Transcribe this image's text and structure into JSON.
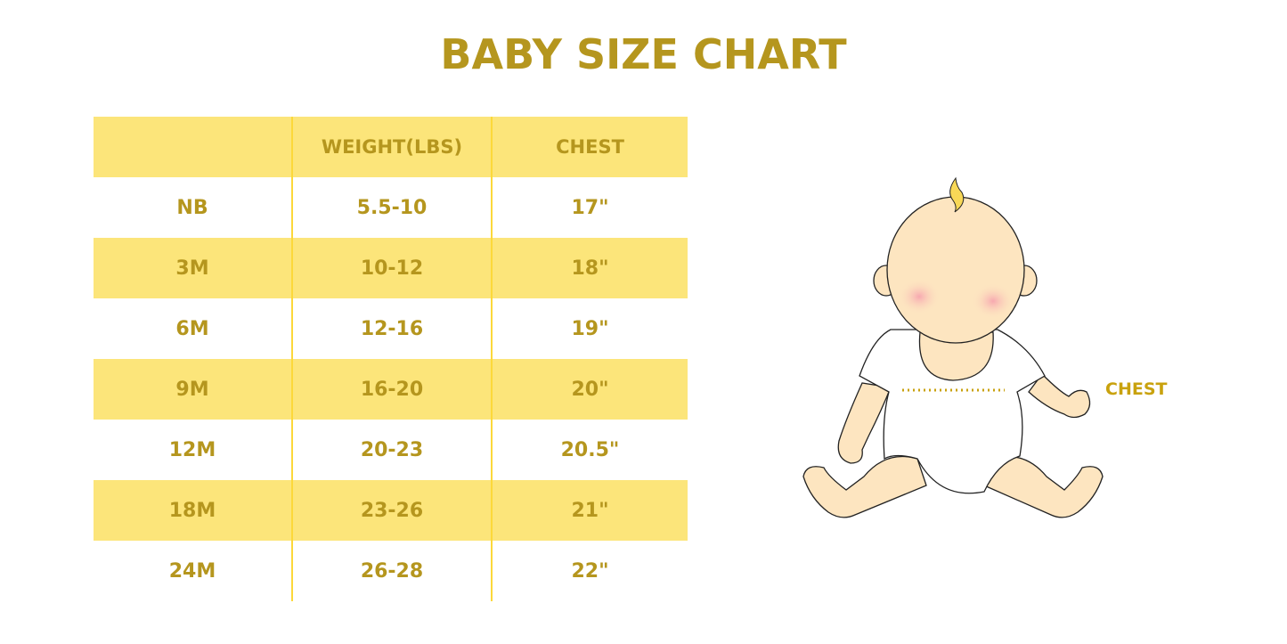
{
  "title": "BABY SIZE CHART",
  "table": {
    "headers": [
      "",
      "WEIGHT(LBS)",
      "CHEST"
    ],
    "rows": [
      [
        "NB",
        "5.5-10",
        "17\""
      ],
      [
        "3M",
        "10-12",
        "18\""
      ],
      [
        "6M",
        "12-16",
        "19\""
      ],
      [
        "9M",
        "16-20",
        "20\""
      ],
      [
        "12M",
        "20-23",
        "20.5\""
      ],
      [
        "18M",
        "23-26",
        "21\""
      ],
      [
        "24M",
        "26-28",
        "22\""
      ]
    ]
  },
  "illustration": {
    "chest_label": "CHEST",
    "icon": "baby-illustration"
  },
  "colors": {
    "text": "#b5961e",
    "stripe": "#fce57a",
    "divider": "#fcd83a"
  }
}
